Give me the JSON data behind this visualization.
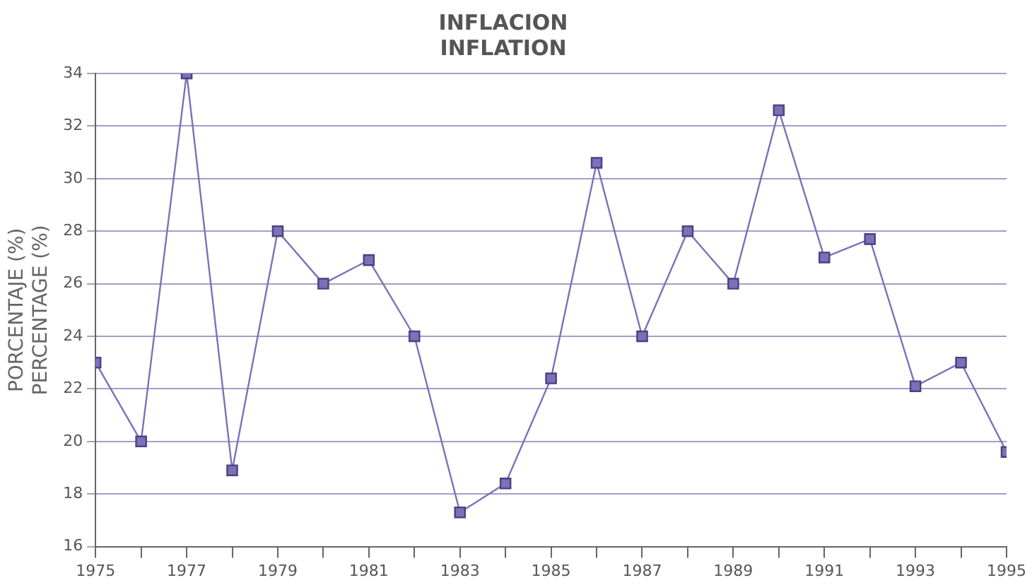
{
  "chart_data": {
    "type": "line",
    "title": "INFLACION",
    "subtitle": "INFLATION",
    "ylabel": "PORCENTAJE (%)\nPERCENTAGE (%)",
    "x": [
      1975,
      1976,
      1977,
      1978,
      1979,
      1980,
      1981,
      1982,
      1983,
      1984,
      1985,
      1986,
      1987,
      1988,
      1989,
      1990,
      1991,
      1992,
      1993,
      1994,
      1995
    ],
    "values": [
      23,
      20,
      34,
      18.9,
      28,
      26,
      26.9,
      24,
      17.3,
      18.4,
      22.4,
      30.6,
      24,
      28,
      26,
      32.6,
      27,
      27.7,
      22.1,
      23,
      19.6
    ],
    "color": "#7a72b8",
    "marker": "square",
    "line_style": "solid",
    "grid": "y",
    "legend": false,
    "xlim": [
      1975,
      1995
    ],
    "xticks": [
      1975,
      {
        "value": 1976,
        "label": null
      },
      1977,
      {
        "value": 1978,
        "label": null
      },
      1979,
      {
        "value": 1980,
        "label": null
      },
      1981,
      {
        "value": 1982,
        "label": null
      },
      1983,
      {
        "value": 1984,
        "label": null
      },
      1985,
      {
        "value": 1986,
        "label": null
      },
      1987,
      {
        "value": 1988,
        "label": null
      },
      1989,
      {
        "value": 1990,
        "label": null
      },
      1991,
      {
        "value": 1992,
        "label": null
      },
      1993,
      {
        "value": 1994,
        "label": null
      },
      1995
    ],
    "ylim": [
      16,
      34
    ],
    "yticks": [
      16,
      18,
      20,
      22,
      24,
      26,
      28,
      30,
      32,
      34
    ]
  }
}
